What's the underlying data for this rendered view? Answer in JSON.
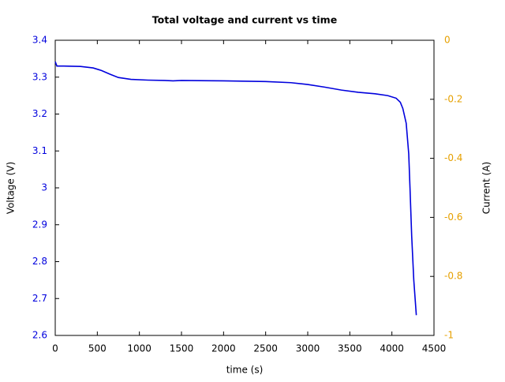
{
  "chart_data": {
    "type": "line",
    "title": "Total voltage and current vs time",
    "x_label": "time (s)",
    "y_label": "Voltage (V)",
    "y2_label": "Current (A)",
    "x": [
      0,
      20,
      100,
      300,
      450,
      550,
      650,
      750,
      900,
      1100,
      1300,
      1400,
      1500,
      2000,
      2500,
      2800,
      3000,
      3200,
      3400,
      3600,
      3800,
      3950,
      4050,
      4100,
      4130,
      4170,
      4200,
      4215,
      4235,
      4260,
      4290
    ],
    "series": [
      {
        "name": "Voltage",
        "color": "#0000dd",
        "values": [
          3.342,
          3.33,
          3.33,
          3.329,
          3.325,
          3.318,
          3.308,
          3.299,
          3.294,
          3.292,
          3.291,
          3.29,
          3.291,
          3.29,
          3.288,
          3.285,
          3.28,
          3.273,
          3.265,
          3.259,
          3.255,
          3.25,
          3.243,
          3.232,
          3.215,
          3.175,
          3.092,
          3.0,
          2.87,
          2.75,
          2.655
        ]
      }
    ],
    "xlim": [
      0,
      4500
    ],
    "xticks": [
      0,
      500,
      1000,
      1500,
      2000,
      2500,
      3000,
      3500,
      4000,
      4500
    ],
    "ylim": [
      2.6,
      3.4
    ],
    "yticks": [
      2.6,
      2.7,
      2.8,
      2.9,
      3,
      3.1,
      3.2,
      3.3,
      3.4
    ],
    "y_color": "#0000dd",
    "y2lim": [
      -1,
      0
    ],
    "y2ticks": [
      -1,
      -0.8,
      -0.6,
      -0.4,
      -0.2,
      0
    ],
    "y2_color": "#e6a000"
  }
}
